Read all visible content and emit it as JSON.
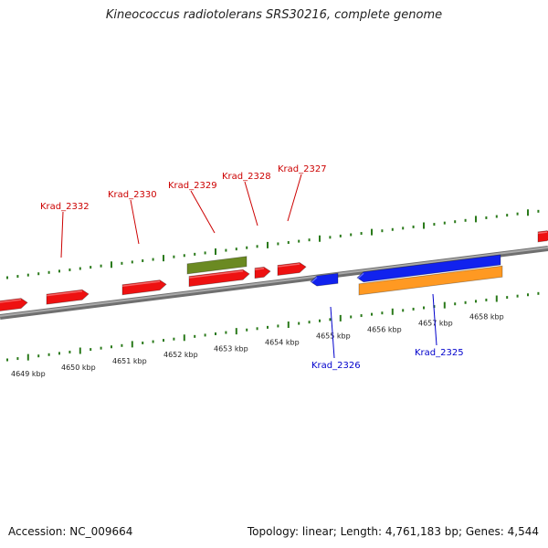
{
  "title": "Kineococcus radiotolerans SRS30216, complete genome",
  "footer": {
    "accession": "Accession: NC_009664",
    "summary": "Topology: linear; Length: 4,761,183 bp; Genes: 4,544"
  },
  "colors": {
    "forward_gene": "#ee1111",
    "reverse_gene": "#1122ee",
    "rna_gene": "#6b8a22",
    "cds_feature": "#ff9922",
    "tick": "#2a7a1a",
    "axis": "#888888",
    "forward_label": "#cc0000",
    "reverse_label": "#0000cc"
  },
  "scale": {
    "ticks_kbp": [
      {
        "value": 4649,
        "label": "4649 kbp"
      },
      {
        "value": 4650,
        "label": "4650 kbp"
      },
      {
        "value": 4651,
        "label": "4651 kbp"
      },
      {
        "value": 4652,
        "label": "4652 kbp"
      },
      {
        "value": 4653,
        "label": "4653 kbp"
      },
      {
        "value": 4654,
        "label": "4654 kbp"
      },
      {
        "value": 4655,
        "label": "4655 kbp"
      },
      {
        "value": 4656,
        "label": "4656 kbp"
      },
      {
        "value": 4657,
        "label": "4657 kbp"
      },
      {
        "value": 4658,
        "label": "4658 kbp"
      }
    ]
  },
  "genes": [
    {
      "name": "Krad_2332",
      "strand": "forward",
      "labeled": true
    },
    {
      "name": "Krad_2330",
      "strand": "forward",
      "labeled": true
    },
    {
      "name": "Krad_2329",
      "strand": "forward",
      "labeled": true
    },
    {
      "name": "Krad_2328",
      "strand": "forward",
      "labeled": true
    },
    {
      "name": "Krad_2327",
      "strand": "forward",
      "labeled": true
    },
    {
      "name": "Krad_2326",
      "strand": "reverse",
      "labeled": true
    },
    {
      "name": "Krad_2325",
      "strand": "reverse",
      "labeled": true
    }
  ]
}
